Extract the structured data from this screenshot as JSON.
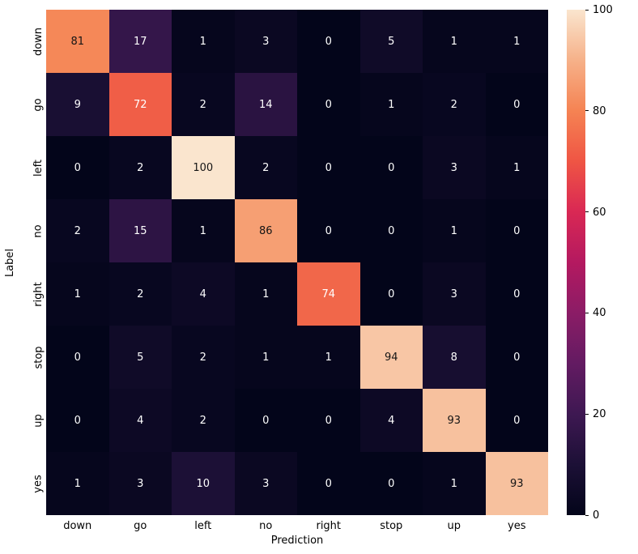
{
  "figure": {
    "background": "#ffffff"
  },
  "chart_data": {
    "type": "heatmap",
    "title": "",
    "xlabel": "Prediction",
    "ylabel": "Label",
    "x_categories": [
      "down",
      "go",
      "left",
      "no",
      "right",
      "stop",
      "up",
      "yes"
    ],
    "y_categories": [
      "down",
      "go",
      "left",
      "no",
      "right",
      "stop",
      "up",
      "yes"
    ],
    "matrix": [
      [
        81,
        17,
        1,
        3,
        0,
        5,
        1,
        1
      ],
      [
        9,
        72,
        2,
        14,
        0,
        1,
        2,
        0
      ],
      [
        0,
        2,
        100,
        2,
        0,
        0,
        3,
        1
      ],
      [
        2,
        15,
        1,
        86,
        0,
        0,
        1,
        0
      ],
      [
        1,
        2,
        4,
        1,
        74,
        0,
        3,
        0
      ],
      [
        0,
        5,
        2,
        1,
        1,
        94,
        8,
        0
      ],
      [
        0,
        4,
        2,
        0,
        0,
        4,
        93,
        0
      ],
      [
        1,
        3,
        10,
        3,
        0,
        0,
        1,
        93
      ]
    ],
    "vmin": 0,
    "vmax": 100,
    "annotations": true,
    "colormap": "rocket",
    "colormap_stops": [
      {
        "t": 0.0,
        "color": "#03051a"
      },
      {
        "t": 0.1,
        "color": "#1c1036"
      },
      {
        "t": 0.2,
        "color": "#3e1852"
      },
      {
        "t": 0.3,
        "color": "#631b62"
      },
      {
        "t": 0.4,
        "color": "#8b1c66"
      },
      {
        "t": 0.5,
        "color": "#b41960"
      },
      {
        "t": 0.6,
        "color": "#d92854"
      },
      {
        "t": 0.7,
        "color": "#ef5544"
      },
      {
        "t": 0.8,
        "color": "#f58353"
      },
      {
        "t": 0.9,
        "color": "#f6b189",
        "note": ""
      },
      {
        "t": 1.0,
        "color": "#fae5ce"
      }
    ],
    "annotation_text_light": "#ffffff",
    "annotation_text_dark": "#151515",
    "legend_position": "right",
    "colorbar": {
      "ticks": [
        0,
        20,
        40,
        60,
        80,
        100
      ]
    }
  }
}
